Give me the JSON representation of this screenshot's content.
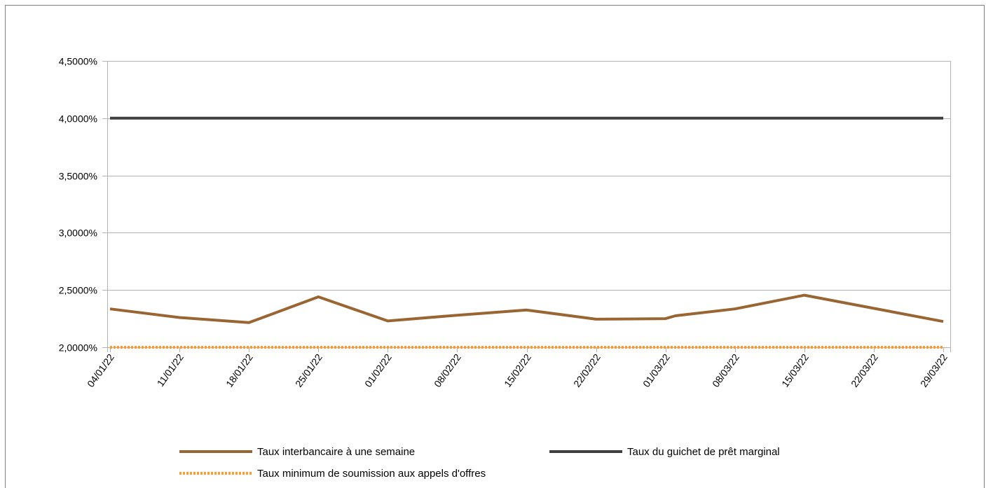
{
  "chart_data": {
    "type": "line",
    "title": "",
    "xlabel": "",
    "ylabel": "",
    "ylim": [
      0.02,
      0.045
    ],
    "yticks": [
      "2,0000%",
      "2,5000%",
      "3,0000%",
      "3,5000%",
      "4,0000%",
      "4,5000%"
    ],
    "ytick_values": [
      0.02,
      0.025,
      0.03,
      0.035,
      0.04,
      0.045
    ],
    "xlim": [
      "2022-01-04",
      "2022-03-29"
    ],
    "xticks": [
      "04/01/22",
      "11/01/22",
      "18/01/22",
      "25/01/22",
      "01/02/22",
      "08/02/22",
      "15/02/22",
      "22/02/22",
      "01/03/22",
      "08/03/22",
      "15/03/22",
      "22/03/22",
      "29/03/22"
    ],
    "xtick_dates": [
      "2022-01-04",
      "2022-01-11",
      "2022-01-18",
      "2022-01-25",
      "2022-02-01",
      "2022-02-08",
      "2022-02-15",
      "2022-02-22",
      "2022-03-01",
      "2022-03-08",
      "2022-03-15",
      "2022-03-22",
      "2022-03-29"
    ],
    "grid": "horizontal",
    "legend_position": "bottom",
    "series": [
      {
        "name": "Taux interbancaire à une semaine",
        "color": "#996633",
        "style": "solid",
        "x": [
          "2022-01-04",
          "2022-01-11",
          "2022-01-18",
          "2022-01-25",
          "2022-02-01",
          "2022-02-08",
          "2022-02-15",
          "2022-02-22",
          "2022-03-01",
          "2022-03-02",
          "2022-03-08",
          "2022-03-15",
          "2022-03-22",
          "2022-03-29"
        ],
        "values": [
          0.02335,
          0.0226,
          0.02215,
          0.0244,
          0.0223,
          0.0228,
          0.02325,
          0.02245,
          0.0225,
          0.02275,
          0.02335,
          0.02455,
          0.0234,
          0.02225
        ]
      },
      {
        "name": "Taux du guichet de prêt marginal",
        "color": "#404040",
        "style": "solid",
        "x": [
          "2022-01-04",
          "2022-03-29"
        ],
        "values": [
          0.04,
          0.04
        ]
      },
      {
        "name": "Taux minimum de soumission aux appels d'offres",
        "color": "#ff9933",
        "style": "dotted",
        "x": [
          "2022-01-04",
          "2022-03-29"
        ],
        "values": [
          0.02,
          0.02
        ]
      }
    ]
  }
}
